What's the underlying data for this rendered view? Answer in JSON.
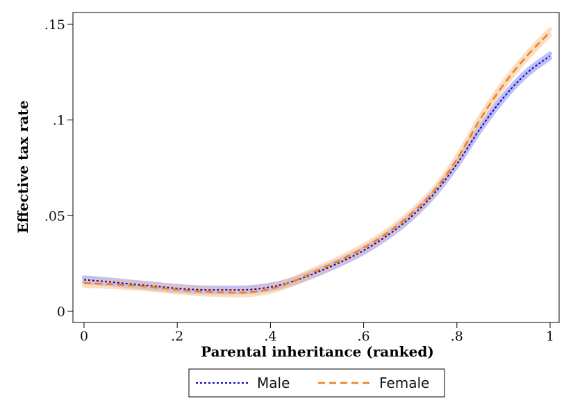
{
  "chart_data": {
    "type": "line",
    "xlabel": "Parental inheritance (ranked)",
    "ylabel": "Effective tax rate",
    "xlim": [
      0,
      1
    ],
    "ylim": [
      0,
      0.15
    ],
    "x_ticks": [
      {
        "value": 0,
        "label": "0"
      },
      {
        "value": 0.2,
        "label": ".2"
      },
      {
        "value": 0.4,
        "label": ".4"
      },
      {
        "value": 0.6,
        "label": ".6"
      },
      {
        "value": 0.8,
        "label": ".8"
      },
      {
        "value": 1,
        "label": "1"
      }
    ],
    "y_ticks": [
      {
        "value": 0,
        "label": "0"
      },
      {
        "value": 0.05,
        "label": ".05"
      },
      {
        "value": 0.1,
        "label": ".1"
      },
      {
        "value": 0.15,
        "label": ".15"
      }
    ],
    "grid": false,
    "legend_position": "bottom",
    "series": [
      {
        "name": "Male",
        "color": "#0000cc",
        "band_color": "#8a8af0",
        "line_style": "dotted",
        "x": [
          0,
          0.05,
          0.1,
          0.15,
          0.2,
          0.25,
          0.3,
          0.35,
          0.4,
          0.45,
          0.5,
          0.55,
          0.6,
          0.65,
          0.7,
          0.75,
          0.8,
          0.85,
          0.9,
          0.95,
          1.0
        ],
        "y": [
          0.0165,
          0.0155,
          0.0143,
          0.0132,
          0.012,
          0.0113,
          0.0112,
          0.0113,
          0.0127,
          0.0158,
          0.0204,
          0.0257,
          0.0318,
          0.0395,
          0.049,
          0.0612,
          0.077,
          0.0955,
          0.1117,
          0.1245,
          0.1335
        ],
        "band_halfwidth": 0.0012
      },
      {
        "name": "Female",
        "color": "#f07d1e",
        "band_color": "#f7c28e",
        "line_style": "dashed",
        "x": [
          0,
          0.05,
          0.1,
          0.15,
          0.2,
          0.25,
          0.3,
          0.35,
          0.4,
          0.45,
          0.5,
          0.55,
          0.6,
          0.65,
          0.7,
          0.75,
          0.8,
          0.85,
          0.9,
          0.95,
          1.0
        ],
        "y": [
          0.0148,
          0.0143,
          0.0136,
          0.0126,
          0.0113,
          0.0104,
          0.0099,
          0.0099,
          0.0117,
          0.0158,
          0.0213,
          0.0268,
          0.0332,
          0.0408,
          0.0505,
          0.0627,
          0.0795,
          0.1004,
          0.1184,
          0.1334,
          0.146
        ],
        "band_halfwidth": 0.0014
      }
    ]
  }
}
